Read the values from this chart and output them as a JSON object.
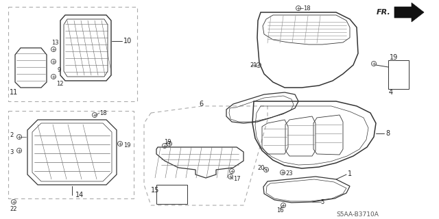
{
  "bg_color": "#ffffff",
  "diagram_code": "S5AA-B3710A",
  "line_color": "#333333",
  "dash_color": "#888888",
  "label_color": "#222222",
  "label_fs": 7.0,
  "small_fs": 6.0
}
